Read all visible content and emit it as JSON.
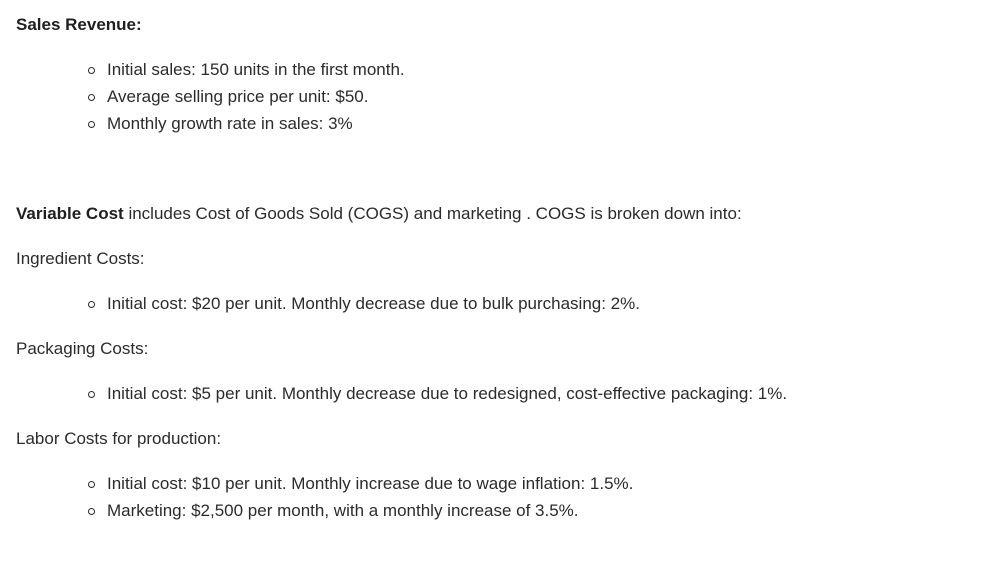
{
  "sales": {
    "heading": "Sales Revenue:",
    "items": [
      "Initial sales: 150 units in the first month.",
      "Average selling price per unit: $50.",
      "Monthly growth rate in sales: 3%"
    ]
  },
  "variable_cost": {
    "bold_term": "Variable Cost",
    "rest": " includes Cost of Goods Sold (COGS) and marketing . COGS is broken down into:"
  },
  "ingredient": {
    "heading": "Ingredient Costs:",
    "items": [
      "Initial cost: $20 per unit. Monthly decrease due to bulk purchasing: 2%."
    ]
  },
  "packaging": {
    "heading": "Packaging Costs:",
    "items": [
      "Initial cost: $5 per unit. Monthly decrease due to redesigned, cost-effective packaging: 1%."
    ]
  },
  "labor": {
    "heading": "Labor Costs for production:",
    "items": [
      "Initial cost: $10 per unit. Monthly increase due to wage inflation: 1.5%.",
      "Marketing: $2,500 per month, with a monthly increase of 3.5%."
    ]
  }
}
